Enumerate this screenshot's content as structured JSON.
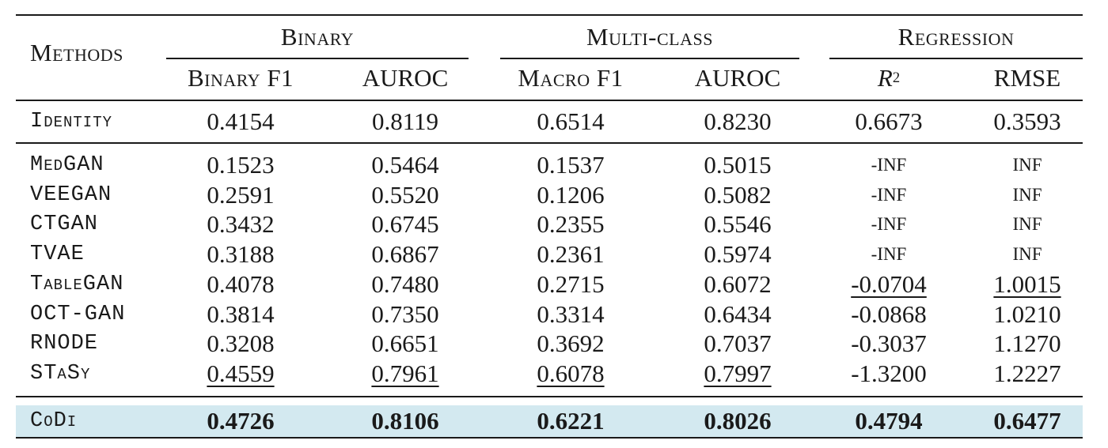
{
  "header": {
    "methods": "Methods",
    "groups": [
      "Binary",
      "Multi-class",
      "Regression"
    ],
    "subcols": [
      "Binary F1",
      "AUROC",
      "Macro F1",
      "AUROC",
      "R",
      "RMSE"
    ],
    "r2_sup": "2"
  },
  "identity": {
    "name": "Identity",
    "values": [
      "0.4154",
      "0.8119",
      "0.6514",
      "0.8230",
      "0.6673",
      "0.3593"
    ]
  },
  "baselines": [
    {
      "name": "MedGAN",
      "values": [
        "0.1523",
        "0.5464",
        "0.1537",
        "0.5015",
        "-INF",
        "INF"
      ]
    },
    {
      "name": "VEEGAN",
      "values": [
        "0.2591",
        "0.5520",
        "0.1206",
        "0.5082",
        "-INF",
        "INF"
      ]
    },
    {
      "name": "CTGAN",
      "values": [
        "0.3432",
        "0.6745",
        "0.2355",
        "0.5546",
        "-INF",
        "INF"
      ]
    },
    {
      "name": "TVAE",
      "values": [
        "0.3188",
        "0.6867",
        "0.2361",
        "0.5974",
        "-INF",
        "INF"
      ]
    },
    {
      "name": "TableGAN",
      "values": [
        "0.4078",
        "0.7480",
        "0.2715",
        "0.6072",
        "-0.0704",
        "1.0015"
      ]
    },
    {
      "name": "OCT-GAN",
      "values": [
        "0.3814",
        "0.7350",
        "0.3314",
        "0.6434",
        "-0.0868",
        "1.0210"
      ]
    },
    {
      "name": "RNODE",
      "values": [
        "0.3208",
        "0.6651",
        "0.3692",
        "0.7037",
        "-0.3037",
        "1.1270"
      ]
    },
    {
      "name": "STaSy",
      "values": [
        "0.4559",
        "0.7961",
        "0.6078",
        "0.7997",
        "-1.3200",
        "1.2227"
      ]
    }
  ],
  "codi": {
    "name": "CoDi",
    "values": [
      "0.4726",
      "0.8106",
      "0.6221",
      "0.8026",
      "0.4794",
      "0.6477"
    ]
  },
  "colors": {
    "highlight": "#d3e9f0",
    "text": "#1a1a1a"
  }
}
